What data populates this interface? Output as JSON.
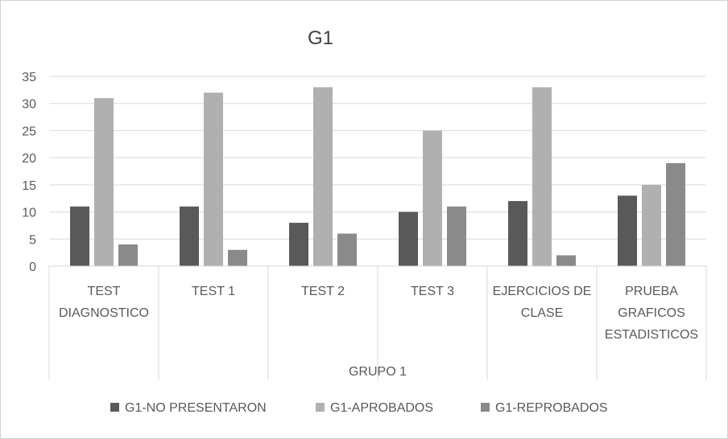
{
  "chart_data": {
    "type": "bar",
    "title": "G1",
    "group_label": "GRUPO 1",
    "categories": [
      [
        "TEST",
        "DIAGNOSTICO"
      ],
      [
        "TEST 1"
      ],
      [
        "TEST 2"
      ],
      [
        "TEST 3"
      ],
      [
        "EJERCICIOS DE",
        "CLASE"
      ],
      [
        "PRUEBA",
        "GRAFICOS",
        "ESTADISTICOS"
      ]
    ],
    "series": [
      {
        "name": "G1-NO PRESENTARON",
        "color": "#595959",
        "values": [
          11,
          11,
          8,
          10,
          12,
          13
        ]
      },
      {
        "name": "G1-APROBADOS",
        "color": "#b0b0b0",
        "values": [
          31,
          32,
          33,
          25,
          33,
          15
        ]
      },
      {
        "name": "G1-REPROBADOS",
        "color": "#8a8a8a",
        "values": [
          4,
          3,
          6,
          11,
          2,
          19
        ]
      }
    ],
    "ylim": [
      0,
      35
    ],
    "yticks": [
      "0",
      "5",
      "10",
      "15",
      "20",
      "25",
      "30",
      "35"
    ],
    "grid": true,
    "legend": "bottom"
  }
}
